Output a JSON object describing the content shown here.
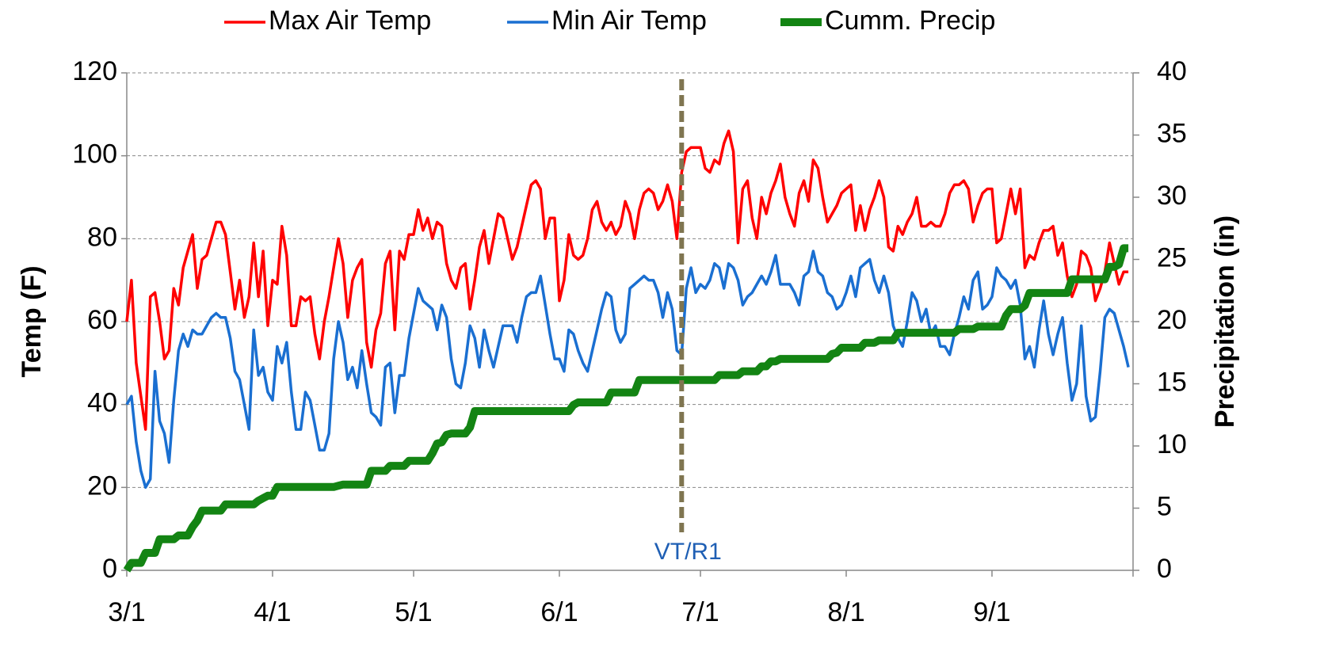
{
  "chart_data": {
    "type": "line",
    "y_label": "Temp (F)",
    "y2_label": "Precipitation (in)",
    "x": [
      0,
      1,
      2,
      3,
      4,
      5,
      6,
      7,
      8,
      9,
      10,
      11,
      12,
      13,
      14,
      15,
      16,
      17,
      18,
      19,
      20,
      21,
      22,
      23,
      24,
      25,
      26,
      27,
      28,
      29,
      30,
      31,
      32,
      33,
      34,
      35,
      36,
      37,
      38,
      39,
      40,
      41,
      42,
      43,
      44,
      45,
      46,
      47,
      48,
      49,
      50,
      51,
      52,
      53,
      54,
      55,
      56,
      57,
      58,
      59,
      60,
      61,
      62,
      63,
      64,
      65,
      66,
      67,
      68,
      69,
      70,
      71,
      72,
      73,
      74,
      75,
      76,
      77,
      78,
      79,
      80,
      81,
      82,
      83,
      84,
      85,
      86,
      87,
      88,
      89,
      90,
      91,
      92,
      93,
      94,
      95,
      96,
      97,
      98,
      99,
      100,
      101,
      102,
      103,
      104,
      105,
      106,
      107,
      108,
      109,
      110,
      111,
      112,
      113,
      114,
      115,
      116,
      117,
      118,
      119,
      120,
      121,
      122,
      123,
      124,
      125,
      126,
      127,
      128,
      129,
      130,
      131,
      132,
      133,
      134,
      135,
      136,
      137,
      138,
      139,
      140,
      141,
      142,
      143,
      144,
      145,
      146,
      147,
      148,
      149,
      150,
      151,
      152,
      153,
      154,
      155,
      156,
      157,
      158,
      159,
      160,
      161,
      162,
      163,
      164,
      165,
      166,
      167,
      168,
      169,
      170,
      171,
      172,
      173,
      174,
      175,
      176,
      177,
      178,
      179,
      180,
      181,
      182,
      183,
      184,
      185,
      186,
      187,
      188,
      189,
      190,
      191,
      192,
      193,
      194,
      195,
      196,
      197,
      198,
      199,
      200,
      201,
      202,
      203,
      204,
      205,
      206,
      207,
      208,
      209,
      210,
      211,
      212,
      213
    ],
    "xlim": [
      0,
      214
    ],
    "xticks": [
      {
        "value": 0,
        "label": "3/1"
      },
      {
        "value": 31,
        "label": "4/1"
      },
      {
        "value": 61,
        "label": "5/1"
      },
      {
        "value": 92,
        "label": "6/1"
      },
      {
        "value": 122,
        "label": "7/1"
      },
      {
        "value": 153,
        "label": "8/1"
      },
      {
        "value": 184,
        "label": "9/1"
      },
      214
    ],
    "ylim": [
      0,
      120
    ],
    "yticks": [
      0,
      20,
      40,
      60,
      80,
      100,
      120
    ],
    "y2lim": [
      0,
      40
    ],
    "y2ticks": [
      0,
      5,
      10,
      15,
      20,
      25,
      30,
      35,
      40
    ],
    "grid": true,
    "annotations": [
      {
        "text": "VT/R1",
        "x": 118,
        "color": "#1f5fb4",
        "line_color": "#7f7550"
      }
    ],
    "series": [
      {
        "name": "Max Air Temp",
        "color": "#ff0000",
        "linewidth": 3.5,
        "values": [
          60,
          70,
          50,
          42,
          34,
          66,
          67,
          60,
          51,
          53,
          68,
          64,
          73,
          77,
          81,
          68,
          75,
          76,
          80,
          84,
          84,
          81,
          72,
          63,
          70,
          61,
          66,
          79,
          66,
          77,
          59,
          70,
          69,
          83,
          76,
          59,
          59,
          66,
          65,
          66,
          57,
          51,
          60,
          66,
          73,
          80,
          74,
          61,
          70,
          73,
          75,
          55,
          49,
          58,
          62,
          74,
          77,
          58,
          77,
          75,
          81,
          81,
          87,
          82,
          85,
          80,
          84,
          83,
          74,
          70,
          68,
          73,
          74,
          63,
          70,
          78,
          82,
          74,
          80,
          86,
          85,
          80,
          75,
          78,
          83,
          88,
          93,
          94,
          92,
          80,
          85,
          85,
          65,
          70,
          81,
          76,
          75,
          76,
          80,
          87,
          89,
          84,
          82,
          84,
          81,
          83,
          89,
          86,
          80,
          87,
          91,
          92,
          91,
          87,
          89,
          93,
          89,
          80,
          96,
          101,
          102,
          102,
          102,
          97,
          96,
          99,
          98,
          103,
          106,
          101,
          79,
          92,
          94,
          85,
          80,
          90,
          86,
          91,
          94,
          98,
          90,
          86,
          83,
          91,
          94,
          89,
          99,
          97,
          90,
          84,
          86,
          88,
          91,
          92,
          93,
          82,
          88,
          82,
          87,
          90,
          94,
          90,
          78,
          77,
          83,
          81,
          84,
          86,
          90,
          83,
          83,
          84,
          83,
          83,
          86,
          91,
          93,
          93,
          94,
          92,
          84,
          88,
          91,
          92,
          92,
          79,
          80,
          86,
          92,
          86,
          92,
          73,
          76,
          75,
          79,
          82,
          82,
          83,
          76,
          79,
          71,
          66,
          69,
          77,
          76,
          73,
          65,
          68,
          72,
          79,
          74,
          69,
          72,
          72
        ]
      },
      {
        "name": "Min Air Temp",
        "color": "#1a6fd1",
        "linewidth": 3.5,
        "values": [
          40,
          42,
          31,
          24,
          20,
          22,
          48,
          36,
          33,
          26,
          41,
          53,
          57,
          54,
          58,
          57,
          57,
          59,
          61,
          62,
          61,
          61,
          56,
          48,
          46,
          40,
          34,
          58,
          47,
          49,
          43,
          41,
          54,
          50,
          55,
          43,
          34,
          34,
          43,
          41,
          35,
          29,
          29,
          33,
          51,
          60,
          55,
          46,
          49,
          44,
          53,
          45,
          38,
          37,
          35,
          49,
          50,
          38,
          47,
          47,
          56,
          62,
          68,
          65,
          64,
          63,
          58,
          64,
          61,
          51,
          45,
          44,
          50,
          59,
          56,
          49,
          58,
          53,
          49,
          54,
          59,
          59,
          59,
          55,
          61,
          66,
          67,
          67,
          71,
          64,
          57,
          51,
          51,
          48,
          58,
          57,
          53,
          50,
          48,
          53,
          58,
          63,
          67,
          66,
          58,
          55,
          57,
          68,
          69,
          70,
          71,
          70,
          70,
          67,
          61,
          67,
          63,
          53,
          52,
          68,
          73,
          67,
          69,
          68,
          70,
          74,
          73,
          68,
          74,
          73,
          70,
          64,
          66,
          67,
          69,
          71,
          69,
          72,
          76,
          69,
          69,
          69,
          67,
          64,
          71,
          72,
          77,
          72,
          71,
          67,
          66,
          63,
          64,
          67,
          71,
          66,
          73,
          74,
          75,
          70,
          67,
          71,
          67,
          59,
          56,
          54,
          60,
          67,
          65,
          60,
          63,
          57,
          59,
          54,
          54,
          52,
          57,
          61,
          66,
          63,
          70,
          72,
          63,
          64,
          66,
          73,
          71,
          70,
          68,
          70,
          64,
          51,
          54,
          49,
          58,
          65,
          57,
          52,
          57,
          61,
          50,
          41,
          45,
          59,
          42,
          36,
          37,
          48,
          61,
          63,
          62,
          58,
          54,
          49
        ]
      },
      {
        "name": "Cumm. Precip",
        "color": "#138413",
        "linewidth": 10,
        "axis": "y2",
        "values": [
          0,
          0.6,
          0.6,
          0.6,
          1.4,
          1.4,
          1.4,
          2.5,
          2.5,
          2.5,
          2.5,
          2.8,
          2.8,
          2.8,
          3.5,
          4,
          4.8,
          4.8,
          4.8,
          4.8,
          4.8,
          5.3,
          5.3,
          5.3,
          5.3,
          5.3,
          5.3,
          5.3,
          5.6,
          5.8,
          6,
          6,
          6.7,
          6.7,
          6.7,
          6.7,
          6.7,
          6.7,
          6.7,
          6.7,
          6.7,
          6.7,
          6.7,
          6.7,
          6.7,
          6.8,
          6.9,
          6.9,
          6.9,
          6.9,
          6.9,
          6.9,
          8,
          8,
          8,
          8,
          8.4,
          8.4,
          8.4,
          8.4,
          8.8,
          8.8,
          8.8,
          8.8,
          8.8,
          9.4,
          10.2,
          10.3,
          10.9,
          11,
          11,
          11,
          11,
          11.5,
          12.8,
          12.8,
          12.8,
          12.8,
          12.8,
          12.8,
          12.8,
          12.8,
          12.8,
          12.8,
          12.8,
          12.8,
          12.8,
          12.8,
          12.8,
          12.8,
          12.8,
          12.8,
          12.8,
          12.8,
          12.8,
          13.3,
          13.5,
          13.5,
          13.5,
          13.5,
          13.5,
          13.5,
          13.5,
          14.3,
          14.3,
          14.3,
          14.3,
          14.3,
          14.3,
          15.3,
          15.3,
          15.3,
          15.3,
          15.3,
          15.3,
          15.3,
          15.3,
          15.3,
          15.3,
          15.3,
          15.3,
          15.3,
          15.3,
          15.3,
          15.3,
          15.3,
          15.7,
          15.7,
          15.7,
          15.7,
          15.7,
          16,
          16,
          16,
          16,
          16.4,
          16.4,
          16.8,
          16.8,
          17,
          17,
          17,
          17,
          17,
          17,
          17,
          17,
          17,
          17,
          17,
          17.4,
          17.5,
          17.9,
          17.9,
          17.9,
          17.9,
          17.9,
          18.3,
          18.3,
          18.3,
          18.5,
          18.5,
          18.5,
          18.5,
          19.1,
          19.1,
          19.1,
          19.1,
          19.1,
          19.1,
          19.1,
          19.1,
          19.1,
          19.1,
          19.1,
          19.1,
          19.1,
          19.4,
          19.4,
          19.4,
          19.4,
          19.6,
          19.6,
          19.6,
          19.6,
          19.6,
          19.6,
          20.5,
          21,
          21,
          21,
          21.3,
          22.3,
          22.3,
          22.3,
          22.3,
          22.3,
          22.3,
          22.3,
          22.3,
          22.3,
          23.4,
          23.4,
          23.4,
          23.4,
          23.4,
          23.4,
          23.4,
          23.4,
          24.4,
          24.4,
          24.6,
          25.9,
          25.9
        ]
      }
    ]
  }
}
